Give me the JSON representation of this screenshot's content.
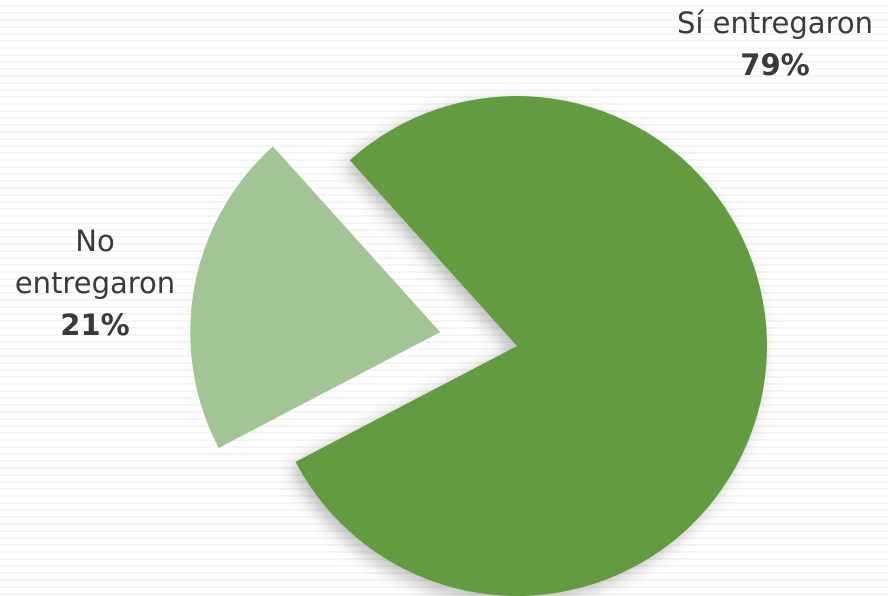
{
  "chart_data": {
    "type": "pie",
    "categories": [
      "Sí entregaron",
      "No entregaron"
    ],
    "values": [
      79,
      21
    ],
    "value_labels": [
      "79%",
      "21%"
    ],
    "colors": [
      "#629b3f",
      "#a2c596"
    ]
  }
}
